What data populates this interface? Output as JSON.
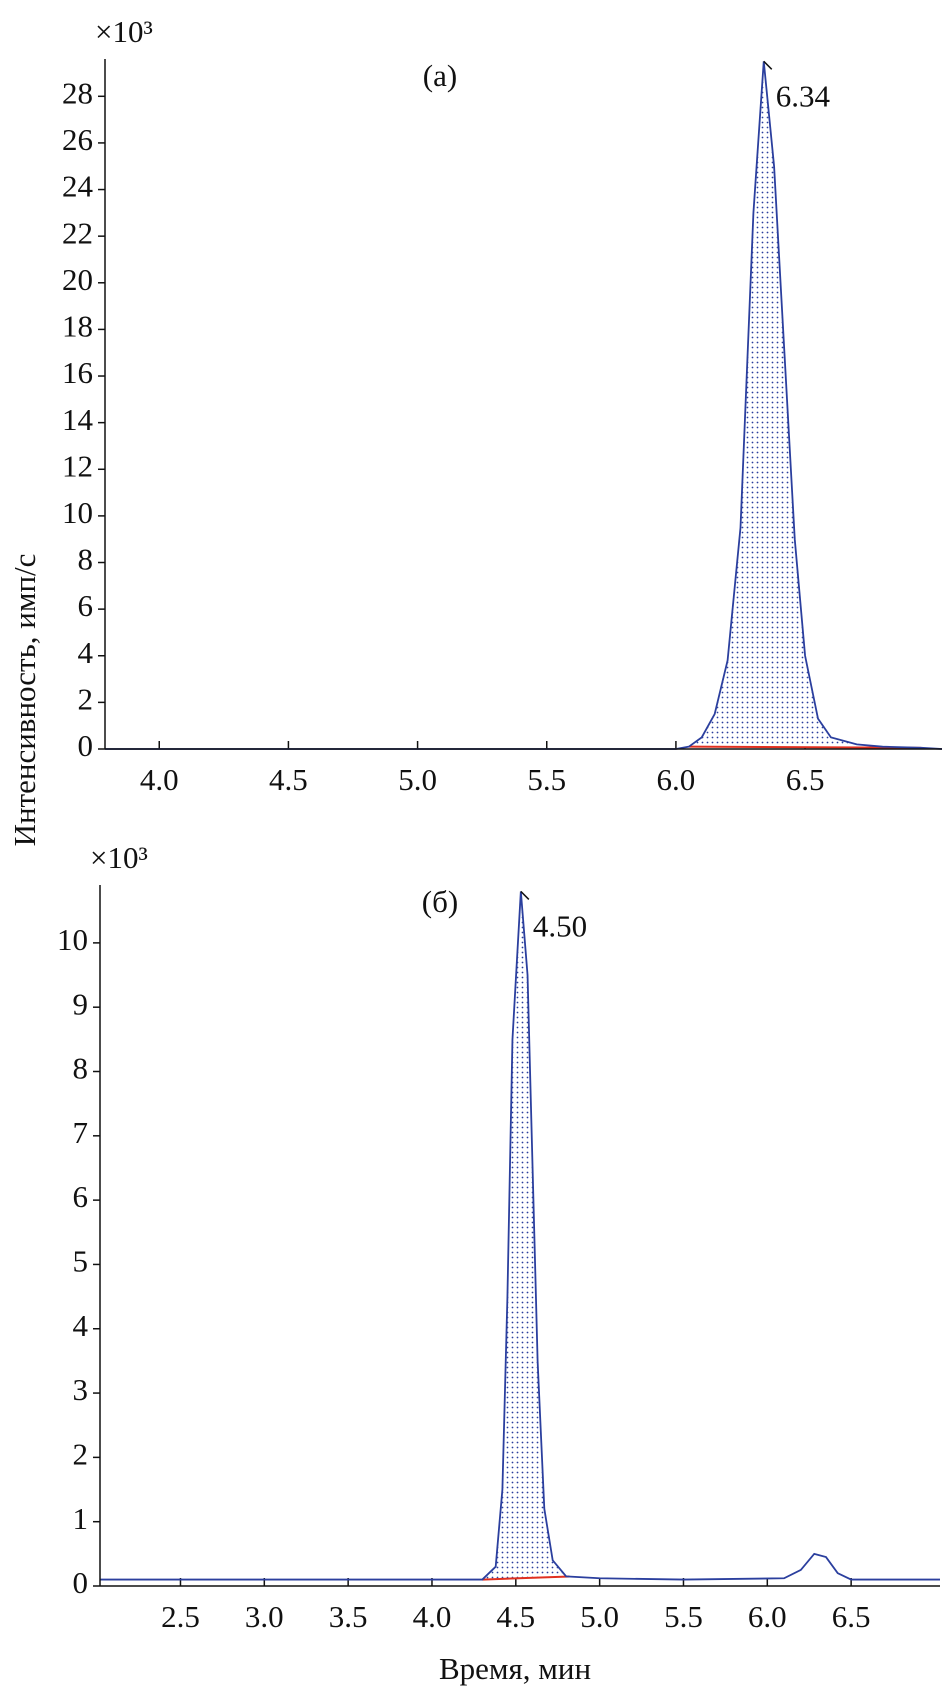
{
  "chart_data": [
    {
      "type": "line",
      "panel_label": "(а)",
      "multiplier": "×10³",
      "ylabel": "Интенсивность, имп/с",
      "xlim": [
        3.79,
        7.03
      ],
      "ylim": [
        0,
        29.6
      ],
      "xticks": [
        {
          "value": 4,
          "label": "4.0"
        },
        4.5,
        {
          "value": 5,
          "label": "5.0"
        },
        5.5,
        {
          "value": 6,
          "label": "6.0"
        },
        6.5
      ],
      "yticks": [
        0,
        2,
        4,
        6,
        8,
        10,
        12,
        14,
        16,
        18,
        20,
        22,
        24,
        26,
        28
      ],
      "peak_label": "6.34",
      "integration_range": [
        6.05,
        6.95
      ],
      "series": [
        {
          "color": "#2b3f9e",
          "baseline_color": "#e03020",
          "x": [
            3.79,
            6.0,
            6.05,
            6.1,
            6.15,
            6.2,
            6.25,
            6.3,
            6.34,
            6.38,
            6.42,
            6.46,
            6.5,
            6.55,
            6.6,
            6.7,
            6.8,
            6.95,
            7.03
          ],
          "values": [
            0,
            0,
            0.1,
            0.5,
            1.5,
            3.8,
            9.5,
            23,
            29.5,
            25,
            17,
            9,
            4,
            1.3,
            0.5,
            0.2,
            0.1,
            0.05,
            0
          ]
        }
      ]
    },
    {
      "type": "line",
      "panel_label": "(б)",
      "multiplier": "×10³",
      "xlabel": "Время, мин",
      "xlim": [
        2.02,
        7.03
      ],
      "ylim": [
        0,
        10.9
      ],
      "xticks": [
        2.5,
        {
          "value": 3,
          "label": "3.0"
        },
        3.5,
        {
          "value": 4,
          "label": "4.0"
        },
        4.5,
        {
          "value": 5,
          "label": "5.0"
        },
        5.5,
        {
          "value": 6,
          "label": "6.0"
        },
        6.5
      ],
      "yticks": [
        0,
        1,
        2,
        3,
        4,
        5,
        6,
        7,
        8,
        9,
        10
      ],
      "peak_label": "4.50",
      "integration_range": [
        4.3,
        4.82
      ],
      "series": [
        {
          "color": "#2b3f9e",
          "baseline_color": "#e03020",
          "x": [
            2.02,
            4.3,
            4.38,
            4.42,
            4.45,
            4.48,
            4.53,
            4.57,
            4.6,
            4.63,
            4.67,
            4.72,
            4.8,
            5.0,
            5.5,
            6.1,
            6.2,
            6.28,
            6.35,
            6.42,
            6.5,
            7.03
          ],
          "values": [
            0.1,
            0.1,
            0.3,
            1.5,
            4.5,
            8.5,
            10.8,
            9.5,
            6.5,
            3.5,
            1.2,
            0.4,
            0.15,
            0.12,
            0.1,
            0.12,
            0.25,
            0.5,
            0.45,
            0.2,
            0.1,
            0.1
          ]
        }
      ]
    }
  ]
}
